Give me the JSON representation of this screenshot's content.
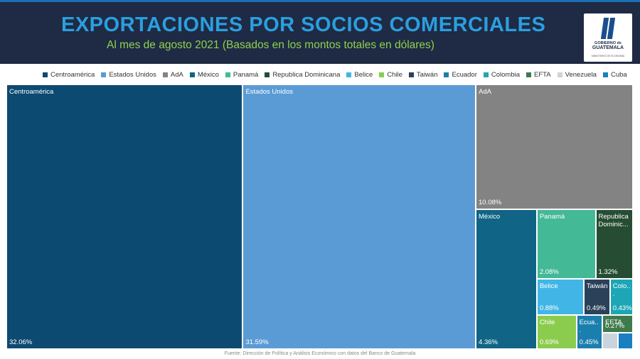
{
  "header": {
    "title": "EXPORTACIONES POR SOCIOS COMERCIALES",
    "subtitle": "Al mes de agosto 2021 (Basados en los montos totales en dólares)",
    "colors": {
      "background": "#1f2a44",
      "title": "#2a9fe0",
      "subtitle": "#8fd14f"
    }
  },
  "logo": {
    "line1": "GOBIERNO de",
    "line2": "GUATEMALA",
    "line3": "MINISTERIO DE ECONOMÍA",
    "icon": "guatemala-government-logo"
  },
  "chart_data": {
    "type": "treemap",
    "title": "EXPORTACIONES POR SOCIOS COMERCIALES",
    "subtitle": "Al mes de agosto 2021 (Basados en los montos totales en dólares)",
    "legend_position": "top",
    "items": [
      {
        "name": "Centroamérica",
        "label": "Centroamérica",
        "value": 32.06,
        "display": "32.06%",
        "color": "#0d4a72",
        "show_value": true
      },
      {
        "name": "Estados Unidos",
        "label": "Estados Unidos",
        "value": 31.59,
        "display": "31.59%",
        "color": "#5b9bd5",
        "show_value": true
      },
      {
        "name": "AdA",
        "label": "AdA",
        "value": 10.08,
        "display": "10.08%",
        "color": "#838383",
        "show_value": true
      },
      {
        "name": "México",
        "label": "México",
        "value": 4.36,
        "display": "4.36%",
        "color": "#106587",
        "show_value": true
      },
      {
        "name": "Panamá",
        "label": "Panamá",
        "value": 2.08,
        "display": "2.08%",
        "color": "#43b996",
        "show_value": true
      },
      {
        "name": "Republica Dominicana",
        "label": "Republica Dominic...",
        "value": 1.32,
        "display": "1.32%",
        "color": "#264d33",
        "show_value": true
      },
      {
        "name": "Belice",
        "label": "Belice",
        "value": 0.88,
        "display": "0.88%",
        "color": "#41b6e6",
        "show_value": true
      },
      {
        "name": "Taiwán",
        "label": "Taiwán",
        "value": 0.49,
        "display": "0.49%",
        "color": "#2a4159",
        "show_value": true
      },
      {
        "name": "Colombia",
        "label": "Colo...",
        "value": 0.43,
        "display": "0.43%",
        "color": "#1da6b5",
        "show_value": true
      },
      {
        "name": "Chile",
        "label": "Chile",
        "value": 0.69,
        "display": "0.69%",
        "color": "#8bcc4e",
        "show_value": true
      },
      {
        "name": "Ecuador",
        "label": "Ecua...",
        "value": 0.45,
        "display": "0.45%",
        "color": "#1b7fae",
        "show_value": true
      },
      {
        "name": "EFTA",
        "label": "EFTA",
        "value": 0.27,
        "display": "0.27%",
        "color": "#3f7a4c",
        "show_value": true
      },
      {
        "name": "Venezuela",
        "label": "",
        "value": 0.13,
        "display": "",
        "color": "#c9d4de",
        "show_value": false
      },
      {
        "name": "Cuba",
        "label": "",
        "value": 0.13,
        "display": "",
        "color": "#1a7fc1",
        "show_value": false
      }
    ],
    "legend": [
      {
        "name": "Centroamérica",
        "color": "#0d4a72"
      },
      {
        "name": "Estados Unidos",
        "color": "#5b9bd5"
      },
      {
        "name": "AdA",
        "color": "#838383"
      },
      {
        "name": "México",
        "color": "#106587"
      },
      {
        "name": "Panamá",
        "color": "#43b996"
      },
      {
        "name": "Republica Dominicana",
        "color": "#264d33"
      },
      {
        "name": "Belice",
        "color": "#41b6e6"
      },
      {
        "name": "Chile",
        "color": "#8bcc4e"
      },
      {
        "name": "Taiwán",
        "color": "#2a4159"
      },
      {
        "name": "Ecuador",
        "color": "#1b7fae"
      },
      {
        "name": "Colombia",
        "color": "#1da6b5"
      },
      {
        "name": "EFTA",
        "color": "#3f7a4c"
      },
      {
        "name": "Venezuela",
        "color": "#c9d4de"
      },
      {
        "name": "Cuba",
        "color": "#1a7fc1"
      }
    ]
  },
  "source": "Fuente: Dirección de Política y Análisis Económico con datos del Banco de Guatemala"
}
